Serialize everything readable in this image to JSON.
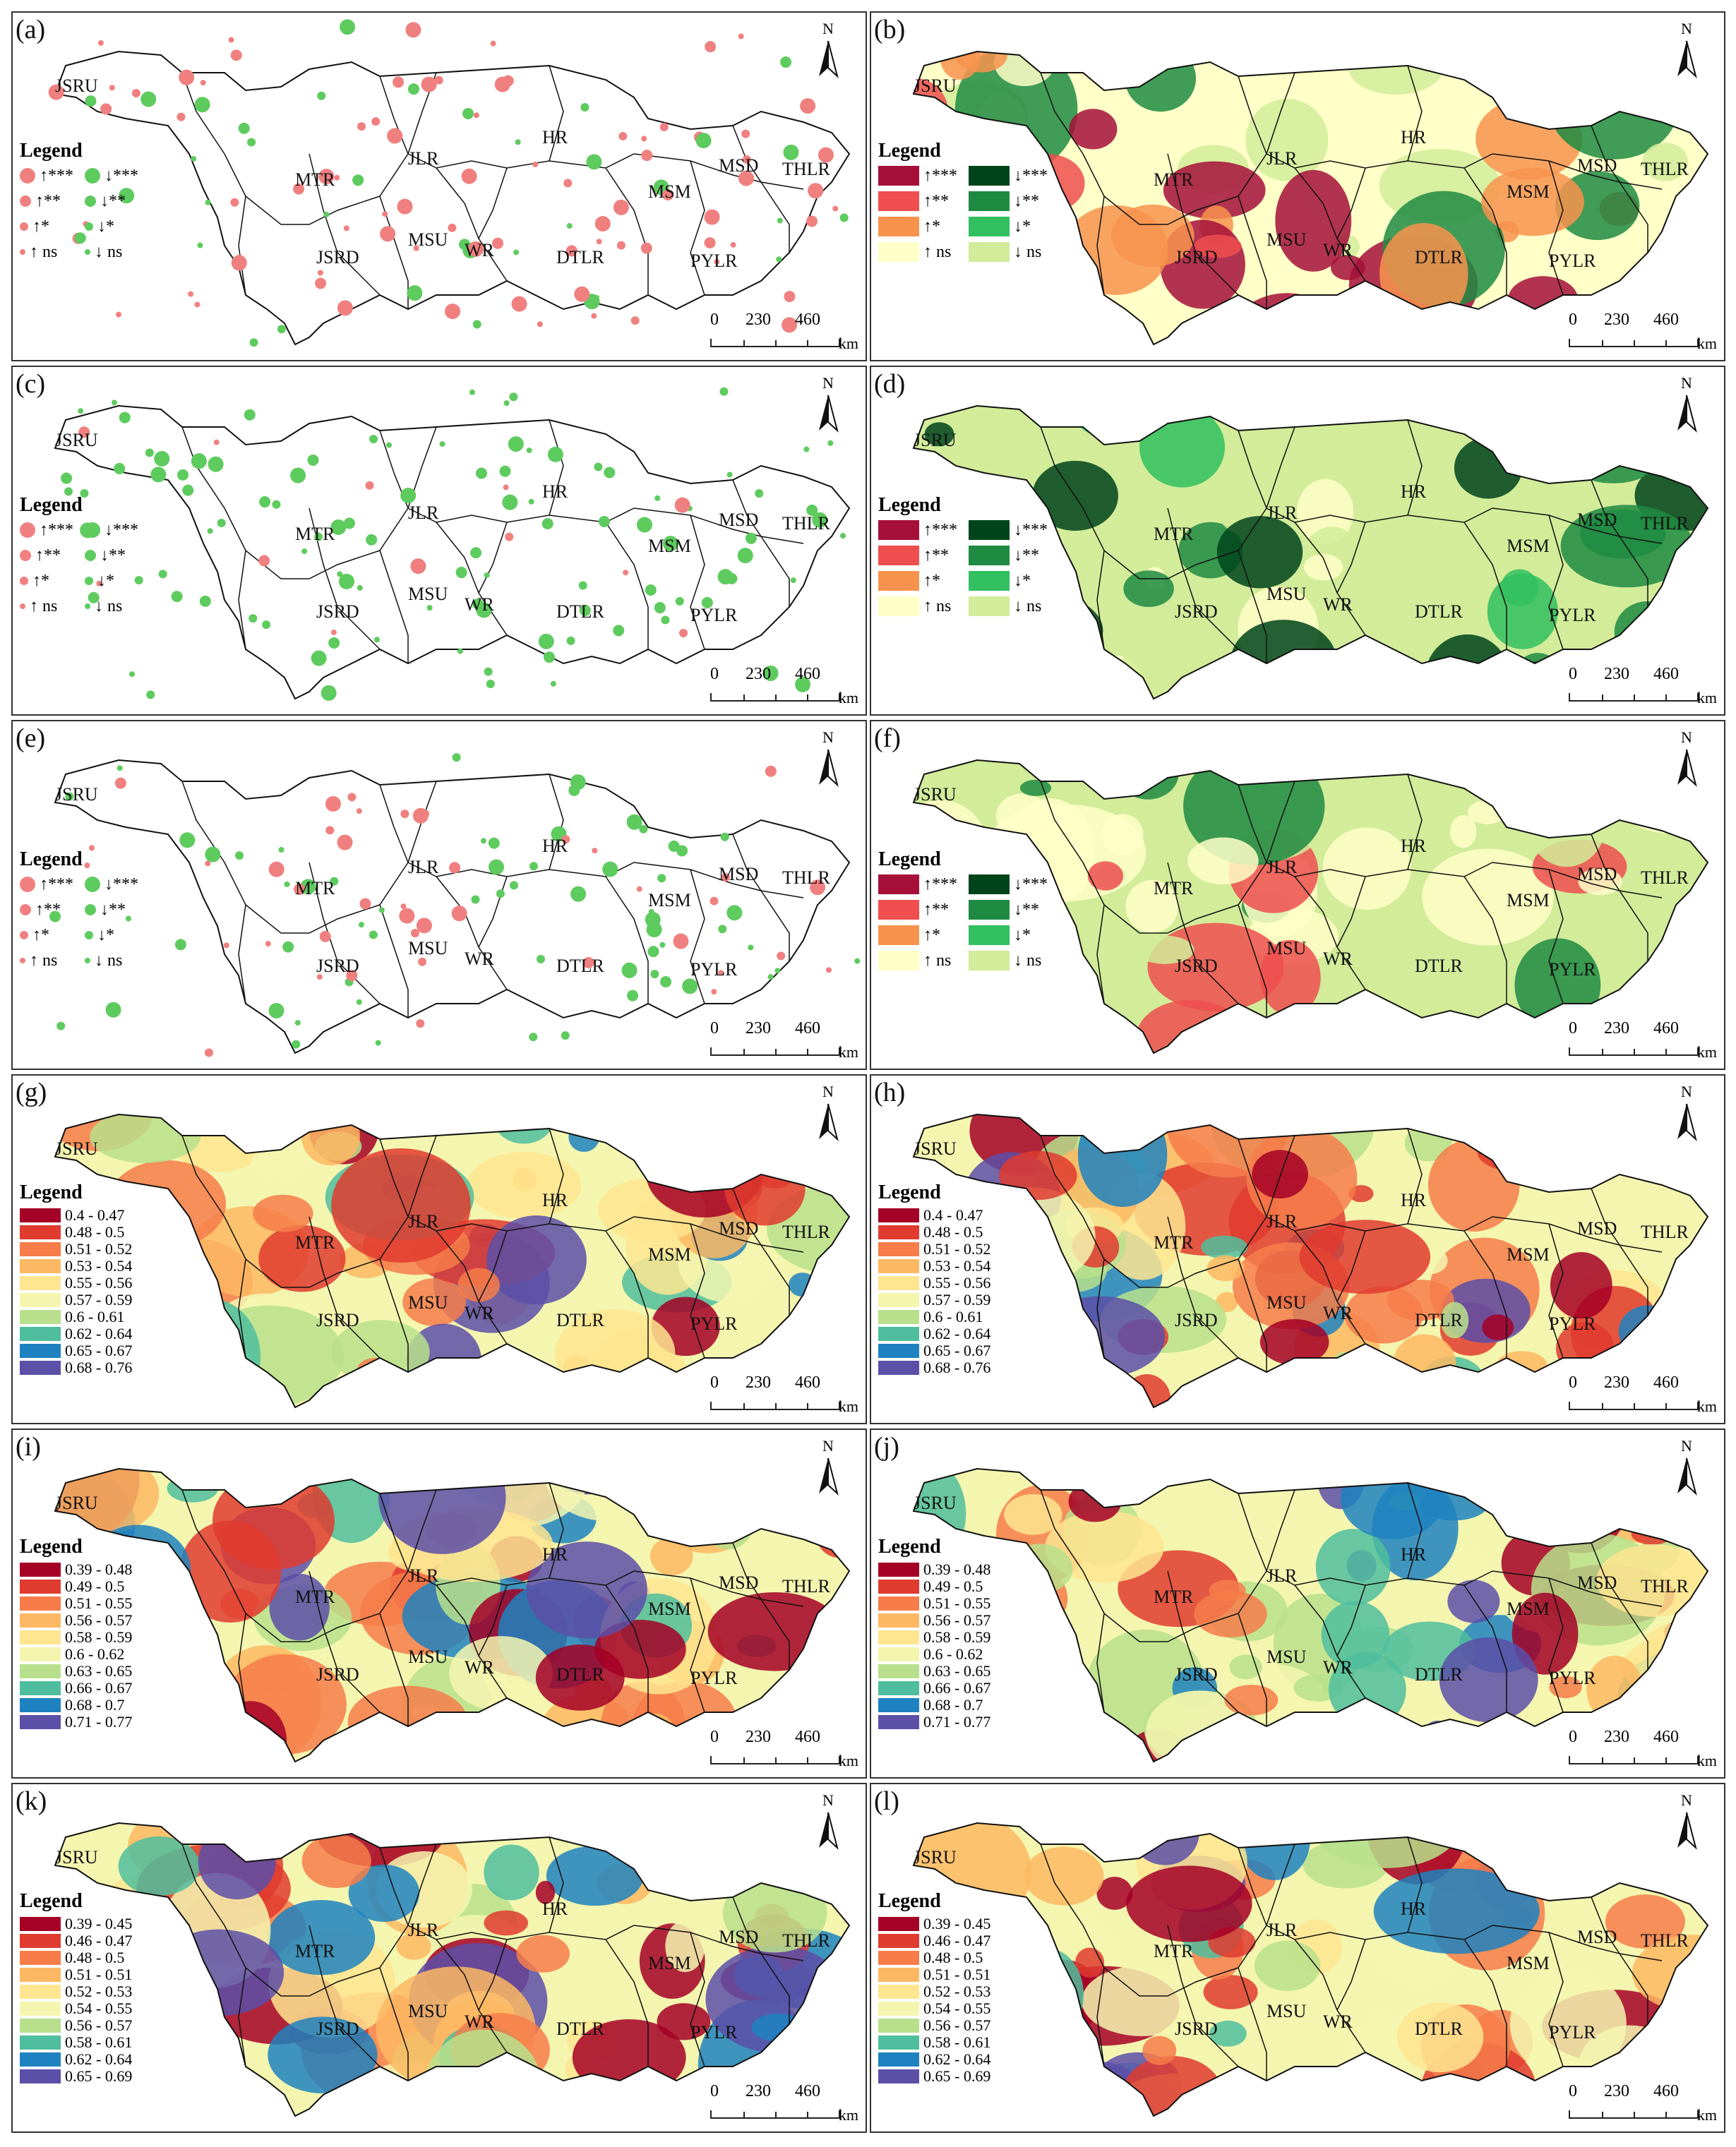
{
  "regions": [
    "JSRU",
    "MTR",
    "JLR",
    "HR",
    "MSU",
    "WR",
    "JSRD",
    "DTLR",
    "PYLR",
    "MSM",
    "MSD",
    "THLR"
  ],
  "north_label": "N",
  "scale": {
    "labels": [
      "0",
      "230",
      "460"
    ],
    "unit": "km"
  },
  "legend_title": "Legend",
  "trend_legend": {
    "up": [
      "↑***",
      "↑**",
      "↑*",
      "↑ ns"
    ],
    "down": [
      "↓***",
      "↓**",
      "↓*",
      "↓ ns"
    ],
    "up_colors": [
      "#a50f3a",
      "#ef4f4f",
      "#f8934e",
      "#ffffc8"
    ],
    "down_colors": [
      "#00441b",
      "#1f8b42",
      "#31bf5f",
      "#d2ec9a"
    ],
    "dot_up_color": "#f08080",
    "dot_down_color": "#5ecb5e"
  },
  "class_legends": {
    "gh": [
      "0.4 - 0.47",
      "0.48 - 0.5",
      "0.51 - 0.52",
      "0.53 - 0.54",
      "0.55 - 0.56",
      "0.57 - 0.59",
      "0.6 - 0.61",
      "0.62 - 0.64",
      "0.65 - 0.67",
      "0.68 - 0.76"
    ],
    "ij": [
      "0.39 - 0.48",
      "0.49 - 0.5",
      "0.51 - 0.55",
      "0.56 - 0.57",
      "0.58 - 0.59",
      "0.6 - 0.62",
      "0.63 - 0.65",
      "0.66 - 0.67",
      "0.68 - 0.7",
      "0.71 - 0.77"
    ],
    "kl": [
      "0.39 - 0.45",
      "0.46 - 0.47",
      "0.48 - 0.5",
      "0.51 - 0.51",
      "0.52 - 0.53",
      "0.54 - 0.55",
      "0.56 - 0.57",
      "0.58 - 0.61",
      "0.62 - 0.64",
      "0.65 - 0.69"
    ],
    "colors": [
      "#a50026",
      "#e03b2f",
      "#f67d4a",
      "#fdb863",
      "#fee590",
      "#f4f6b0",
      "#b8e08c",
      "#4fbe9e",
      "#1f82c0",
      "#5c4fa8"
    ]
  },
  "panels": [
    {
      "letter": "(a)",
      "kind": "dots",
      "dominant": "up"
    },
    {
      "letter": "(b)",
      "kind": "raster-trend",
      "dominant": "up"
    },
    {
      "letter": "(c)",
      "kind": "dots",
      "dominant": "down"
    },
    {
      "letter": "(d)",
      "kind": "raster-trend",
      "dominant": "down"
    },
    {
      "letter": "(e)",
      "kind": "dots",
      "dominant": "mixed"
    },
    {
      "letter": "(f)",
      "kind": "raster-trend",
      "dominant": "mixed"
    },
    {
      "letter": "(g)",
      "kind": "class",
      "legend": "gh"
    },
    {
      "letter": "(h)",
      "kind": "class",
      "legend": "gh"
    },
    {
      "letter": "(i)",
      "kind": "class",
      "legend": "ij"
    },
    {
      "letter": "(j)",
      "kind": "class",
      "legend": "ij"
    },
    {
      "letter": "(k)",
      "kind": "class",
      "legend": "kl"
    },
    {
      "letter": "(l)",
      "kind": "class",
      "legend": "kl"
    }
  ]
}
